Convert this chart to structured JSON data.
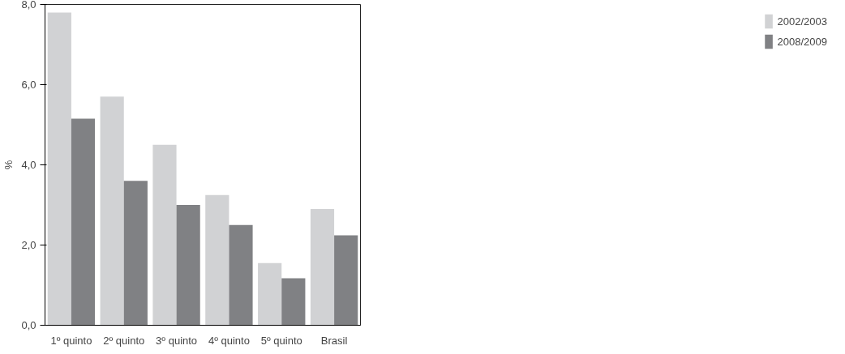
{
  "chart_data": {
    "type": "bar",
    "ylabel": "%",
    "categories": [
      "1º quinto",
      "2º quinto",
      "3º quinto",
      "4º quinto",
      "5º quinto",
      "Brasil"
    ],
    "series": [
      {
        "name": "2002/2003",
        "color": "#d1d2d4",
        "values": [
          7.8,
          5.7,
          4.5,
          3.25,
          1.55,
          2.9
        ]
      },
      {
        "name": "2008/2009",
        "color": "#808184",
        "values": [
          5.15,
          3.6,
          3.0,
          2.5,
          1.17,
          2.24
        ]
      }
    ],
    "ylim": [
      0,
      8
    ],
    "yticks": [
      {
        "value": 0,
        "label": "0,0"
      },
      {
        "value": 2,
        "label": "2,0"
      },
      {
        "value": 4,
        "label": "4,0"
      },
      {
        "value": 6,
        "label": "6,0"
      },
      {
        "value": 8,
        "label": "8,0"
      }
    ],
    "grid": false,
    "legend": "top right"
  }
}
